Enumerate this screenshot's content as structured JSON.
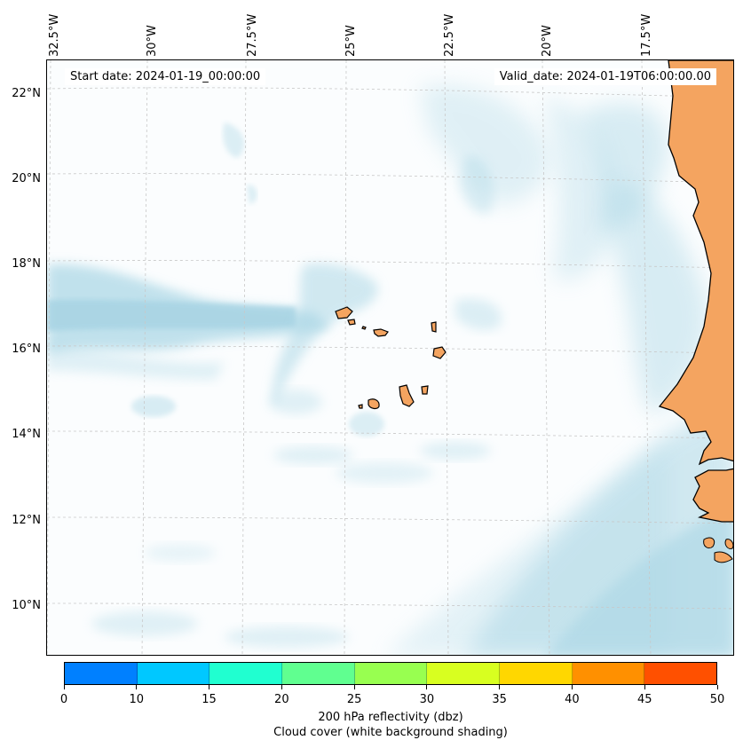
{
  "map": {
    "start_date": "Start date: 2024-01-19_00:00:00",
    "valid_date": "Valid_date: 2024-01-19T06:00:00.00",
    "longitude_labels": [
      "32.5°W",
      "30°W",
      "27.5°W",
      "25°W",
      "22.5°W",
      "20°W",
      "17.5°W"
    ],
    "latitude_labels": [
      "22°N",
      "20°N",
      "18°N",
      "16°N",
      "14°N",
      "12°N",
      "10°N"
    ],
    "colors": {
      "cloud": "#add8e6",
      "land": "#f4a460",
      "coastline": "#000000",
      "gridline": "#c8c8c8"
    }
  },
  "colorbar": {
    "ticks": [
      "0",
      "10",
      "15",
      "20",
      "25",
      "30",
      "35",
      "40",
      "45",
      "50"
    ],
    "colors": [
      "#0080ff",
      "#00c8ff",
      "#20ffd0",
      "#60ff90",
      "#98ff50",
      "#d8ff20",
      "#ffd700",
      "#ff9000",
      "#ff5000"
    ],
    "label": "200 hPa reflectivity (dbz)",
    "sublabel": "Cloud cover (white background shading)"
  }
}
